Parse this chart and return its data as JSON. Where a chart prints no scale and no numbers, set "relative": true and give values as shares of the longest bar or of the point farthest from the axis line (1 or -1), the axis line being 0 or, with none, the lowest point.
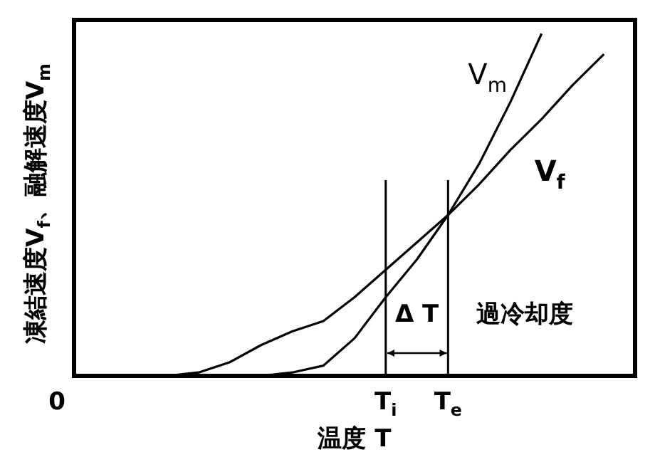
{
  "chart_data": {
    "type": "line",
    "relative": true,
    "xlabel": "温度 T",
    "ylabel": "凍結速度V$_{f}$、融解速度V$_{m}$",
    "categories": [
      "0",
      null,
      null,
      null,
      null,
      null,
      null,
      null,
      null,
      null,
      "T$_{i}$",
      null,
      "T$_{e}$",
      null,
      null,
      null,
      null,
      null,
      null
    ],
    "series": [
      {
        "name": "V$_{m}$",
        "color": "#000000",
        "values": [
          0,
          0,
          0,
          0,
          0,
          0,
          0,
          0.01,
          0.03,
          0.11,
          0.23,
          0.34,
          0.47,
          0.62,
          0.8,
          1,
          null,
          null,
          null
        ]
      },
      {
        "name": "V$_{f}$",
        "color": "#000000",
        "values": [
          0,
          0,
          0,
          0,
          0.01,
          0.04,
          0.09,
          0.13,
          0.16,
          0.23,
          0.31,
          0.39,
          0.47,
          0.56,
          0.66,
          0.75,
          0.85,
          0.94,
          null
        ]
      }
    ],
    "ref_lines": [
      {
        "axis": "x",
        "value": "T$_{i}$",
        "label": null,
        "color": "#000000"
      },
      {
        "axis": "x",
        "value": "T$_{e}$",
        "label": null,
        "color": "#000000"
      }
    ],
    "annotations": [
      "Δ T",
      "過冷却度"
    ],
    "legend": false,
    "marker": "none",
    "line_style": "solid"
  }
}
